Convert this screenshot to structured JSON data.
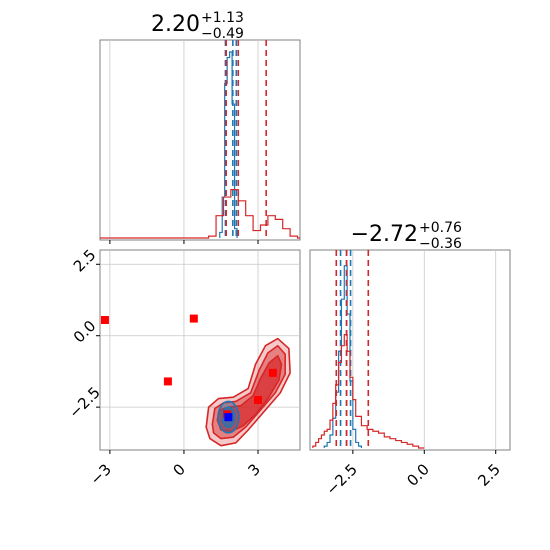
{
  "chart_data": {
    "type": "corner",
    "colors": {
      "blue": "#1f77b4",
      "red": "#d62728",
      "marker_blue": "#0000ff",
      "marker_red": "#ff0000"
    },
    "panels": [
      {
        "id": "hist-p1",
        "type": "histogram",
        "title": {
          "value": "2.20",
          "plus": "+1.13",
          "minus": "−0.49"
        },
        "xlim": [
          -3.4,
          4.7
        ],
        "x_ticks": [
          -3,
          0,
          3
        ],
        "x_tick_labels_shown": false,
        "grid": true,
        "series": [
          {
            "name": "",
            "color": "#1f77b4",
            "bin_edges": [
              1.45,
              1.55,
              1.65,
              1.75,
              1.85,
              1.95,
              2.05,
              2.15
            ],
            "values": [
              0.03,
              0.22,
              0.83,
              0.97,
              1.0,
              0.72,
              0.05
            ],
            "quantiles": [
              1.68,
              1.98,
              2.12
            ]
          },
          {
            "name": "",
            "color": "#d62728",
            "bin_edges": [
              -3.4,
              1.0,
              1.3,
              1.6,
              1.9,
              2.2,
              2.5,
              2.8,
              3.1,
              3.4,
              3.7,
              4.0,
              4.3,
              4.6,
              4.7
            ],
            "values": [
              0.0,
              0.01,
              0.12,
              0.22,
              0.26,
              0.2,
              0.12,
              0.04,
              0.07,
              0.12,
              0.1,
              0.05,
              0.01,
              0.0
            ],
            "quantiles": [
              1.71,
              2.2,
              3.33
            ]
          }
        ]
      },
      {
        "id": "joint",
        "type": "contour",
        "xlim": [
          -3.4,
          4.7
        ],
        "ylim": [
          -4.0,
          3.0
        ],
        "x_ticks": [
          -3,
          0,
          3
        ],
        "x_tick_labels": [
          "−3",
          "0",
          "3"
        ],
        "y_ticks": [
          -2.5,
          0.0,
          2.5
        ],
        "y_tick_labels": [
          "−2.5",
          "0.0",
          "2.5"
        ],
        "grid": true,
        "red_contours": [
          {
            "level": "outer",
            "points": [
              [
                0.9,
                -3.2
              ],
              [
                1.0,
                -2.5
              ],
              [
                1.4,
                -2.2
              ],
              [
                2.0,
                -2.15
              ],
              [
                2.6,
                -1.85
              ],
              [
                2.9,
                -1.0
              ],
              [
                3.3,
                -0.35
              ],
              [
                3.8,
                -0.1
              ],
              [
                4.25,
                -0.45
              ],
              [
                4.3,
                -1.3
              ],
              [
                3.9,
                -2.0
              ],
              [
                3.2,
                -2.7
              ],
              [
                2.6,
                -3.3
              ],
              [
                2.1,
                -3.75
              ],
              [
                1.5,
                -3.85
              ],
              [
                1.05,
                -3.6
              ]
            ]
          },
          {
            "level": "middle",
            "points": [
              [
                1.15,
                -3.1
              ],
              [
                1.25,
                -2.55
              ],
              [
                1.6,
                -2.35
              ],
              [
                2.1,
                -2.3
              ],
              [
                2.7,
                -2.0
              ],
              [
                3.05,
                -1.2
              ],
              [
                3.4,
                -0.6
              ],
              [
                3.8,
                -0.35
              ],
              [
                4.1,
                -0.65
              ],
              [
                4.1,
                -1.35
              ],
              [
                3.7,
                -2.0
              ],
              [
                3.05,
                -2.65
              ],
              [
                2.5,
                -3.2
              ],
              [
                2.0,
                -3.55
              ],
              [
                1.5,
                -3.6
              ],
              [
                1.2,
                -3.4
              ]
            ]
          },
          {
            "level": "inner",
            "points": [
              [
                1.35,
                -2.95
              ],
              [
                1.45,
                -2.6
              ],
              [
                1.8,
                -2.5
              ],
              [
                2.3,
                -2.45
              ],
              [
                2.8,
                -2.1
              ],
              [
                3.1,
                -1.5
              ],
              [
                3.45,
                -0.95
              ],
              [
                3.8,
                -0.7
              ],
              [
                3.95,
                -1.0
              ],
              [
                3.85,
                -1.55
              ],
              [
                3.4,
                -2.2
              ],
              [
                2.9,
                -2.75
              ],
              [
                2.4,
                -3.15
              ],
              [
                1.9,
                -3.35
              ],
              [
                1.5,
                -3.3
              ]
            ]
          }
        ],
        "blue_contours": [
          {
            "level": "outer",
            "center": [
              1.8,
              -2.85
            ],
            "rx": 0.42,
            "ry": 0.55
          },
          {
            "level": "inner",
            "center": [
              1.8,
              -2.85
            ],
            "rx": 0.25,
            "ry": 0.35
          }
        ],
        "points_red": [
          {
            "x": -3.2,
            "y": 0.55
          },
          {
            "x": 0.4,
            "y": 0.6
          },
          {
            "x": -0.65,
            "y": -1.6
          },
          {
            "x": 3.6,
            "y": -1.3
          },
          {
            "x": 3.0,
            "y": -2.25
          },
          {
            "x": 1.75,
            "y": -2.75
          }
        ],
        "points_blue": [
          {
            "x": 1.8,
            "y": -2.85
          }
        ]
      },
      {
        "id": "hist-p2",
        "type": "histogram",
        "title": {
          "value": "−2.72",
          "plus": "+0.76",
          "minus": "−0.36"
        },
        "xlim": [
          -4.0,
          3.0
        ],
        "x_ticks": [
          -2.5,
          0.0,
          2.5
        ],
        "x_tick_labels": [
          "−2.5",
          "0.0",
          "2.5"
        ],
        "grid": true,
        "series": [
          {
            "name": "",
            "color": "#1f77b4",
            "bin_edges": [
              -3.5,
              -3.4,
              -3.3,
              -3.2,
              -3.1,
              -3.0,
              -2.9,
              -2.8,
              -2.7,
              -2.6,
              -2.5,
              -2.4,
              -2.3,
              -2.2
            ],
            "values": [
              0.01,
              0.03,
              0.07,
              0.16,
              0.3,
              0.52,
              0.8,
              0.98,
              0.72,
              0.36,
              0.1,
              0.03,
              0.01
            ],
            "quantiles": [
              -2.93,
              -2.72,
              -2.58
            ]
          },
          {
            "name": "",
            "color": "#d62728",
            "bin_edges": [
              -3.9,
              -3.8,
              -3.7,
              -3.6,
              -3.5,
              -3.4,
              -3.3,
              -3.2,
              -3.1,
              -3.0,
              -2.9,
              -2.8,
              -2.7,
              -2.6,
              -2.5,
              -2.4,
              -2.2,
              -2.0,
              -1.8,
              -1.6,
              -1.4,
              -1.2,
              -1.0,
              -0.8,
              -0.6,
              -0.4,
              -0.2,
              0.0
            ],
            "values": [
              0.01,
              0.03,
              0.05,
              0.07,
              0.09,
              0.1,
              0.15,
              0.24,
              0.34,
              0.46,
              0.55,
              0.61,
              0.52,
              0.38,
              0.26,
              0.17,
              0.12,
              0.1,
              0.09,
              0.08,
              0.06,
              0.05,
              0.04,
              0.03,
              0.02,
              0.01,
              0.0
            ],
            "quantiles": [
              -3.08,
              -2.72,
              -1.96
            ]
          }
        ]
      }
    ]
  }
}
